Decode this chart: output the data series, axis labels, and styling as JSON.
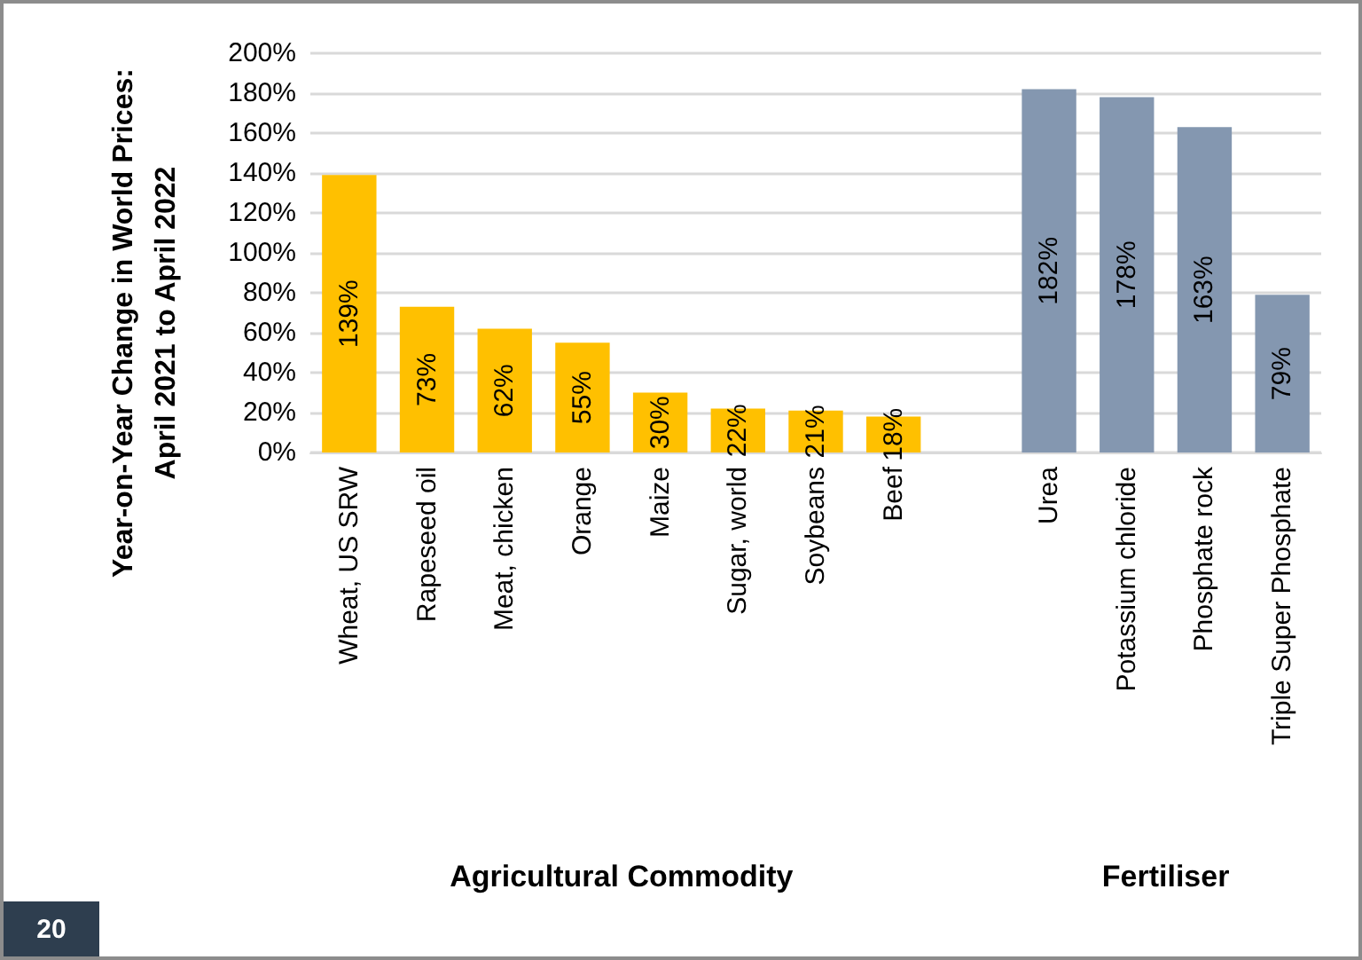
{
  "chart_data": {
    "type": "bar",
    "ylabel": "Year-on-Year Change in World Prices:\nApril 2021 to April 2022",
    "categories": [
      "Wheat, US SRW",
      "Rapeseed oil",
      "Meat, chicken",
      "Orange",
      "Maize",
      "Sugar, world",
      "Soybeans",
      "Beef",
      null,
      "Urea",
      "Potassium chloride",
      "Phosphate rock",
      "Triple Super Phosphate"
    ],
    "values": [
      139,
      73,
      62,
      55,
      30,
      22,
      21,
      18,
      null,
      182,
      178,
      163,
      79
    ],
    "colors": [
      "#ffc000",
      "#ffc000",
      "#ffc000",
      "#ffc000",
      "#ffc000",
      "#ffc000",
      "#ffc000",
      "#ffc000",
      null,
      "#8497b0",
      "#8497b0",
      "#8497b0",
      "#8497b0"
    ],
    "value_labels": [
      "139%",
      "73%",
      "62%",
      "55%",
      "30%",
      "22%",
      "21%",
      "18%",
      null,
      "182%",
      "178%",
      "163%",
      "79%"
    ],
    "ylim": [
      0,
      200
    ],
    "yticks": [
      {
        "value": 0,
        "label": "0%"
      },
      {
        "value": 20,
        "label": "20%"
      },
      {
        "value": 40,
        "label": "40%"
      },
      {
        "value": 60,
        "label": "60%"
      },
      {
        "value": 80,
        "label": "80%"
      },
      {
        "value": 100,
        "label": "100%"
      },
      {
        "value": 120,
        "label": "120%"
      },
      {
        "value": 140,
        "label": "140%"
      },
      {
        "value": 160,
        "label": "160%"
      },
      {
        "value": 180,
        "label": "180%"
      },
      {
        "value": 200,
        "label": "200%"
      }
    ],
    "grid": "y",
    "annotations": [
      "Agricultural Commodity",
      "Fertiliser",
      "20"
    ]
  }
}
